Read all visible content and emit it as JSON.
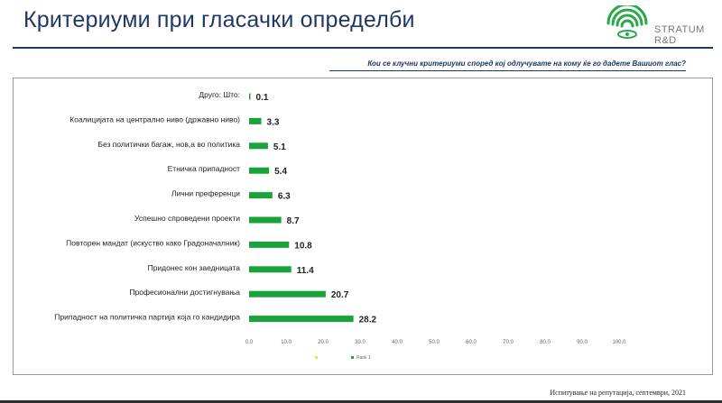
{
  "header": {
    "title": "Критериуми при гласачки определби",
    "brand": "STRATUM R&D",
    "question": "Кои се клучни критериуми според кој одлучувате на кому ќе го дадете Вашиот глас?"
  },
  "footer": {
    "note": "Испитување на репутација, септември, 2021"
  },
  "colors": {
    "bar": "#1aa33a",
    "title": "#1f3864",
    "legend_marker_1": "#e6e63c",
    "logo": "#2aa84a"
  },
  "chart_data": {
    "type": "bar",
    "orientation": "horizontal",
    "categories": [
      "Друго: Што:",
      "Коалицијата на централно ниво (државно ниво)",
      "Без политички багаж, нов,а во политика",
      "Етничка припадност",
      "Лични преференци",
      "Успешно спроведени проекти",
      "Повторен мандат (искуство како Градоначалник)",
      "Придонес кон заедницата",
      "Професионални достигнувања",
      "Припадност на политичка партија која го кандидира"
    ],
    "series": [
      {
        "name": "Rank 1",
        "values": [
          0.1,
          3.3,
          5.1,
          5.4,
          6.3,
          8.7,
          10.8,
          11.4,
          20.7,
          28.2
        ]
      }
    ],
    "value_labels": [
      "0.1",
      "3.3",
      "5.1",
      "5.4",
      "6.3",
      "8.7",
      "10.8",
      "11.4",
      "20.7",
      "28.2"
    ],
    "xlim": [
      0,
      100
    ],
    "xticks": [
      "0.0",
      "10.0",
      "20.0",
      "30.0",
      "40.0",
      "50.0",
      "60.0",
      "70.0",
      "80.0",
      "90.0",
      "100.0"
    ],
    "grid": false,
    "legend_position": "bottom",
    "legend_extra_marker": ""
  }
}
